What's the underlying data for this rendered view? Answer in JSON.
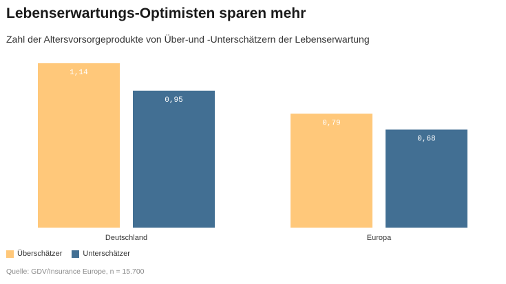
{
  "colors": {
    "ueberschaetzer": "#ffc87a",
    "unterschaetzer": "#426f93",
    "label_on_light": "#ffffff",
    "label_on_dark": "#ffffff"
  },
  "header": {
    "title": "Lebenserwartungs-Optimisten sparen mehr",
    "subtitle": "Zahl der Altersvorsorgeprodukte von Über-und -Unterschätzern der Lebenserwartung"
  },
  "legend": {
    "items": [
      {
        "label": "Überschätzer",
        "color": "#ffc87a"
      },
      {
        "label": "Unterschätzer",
        "color": "#426f93"
      }
    ]
  },
  "footer": {
    "source": "Quelle: GDV/Insurance Europe, n = 15.700"
  },
  "chart_data": {
    "type": "bar",
    "title": "Lebenserwartungs-Optimisten sparen mehr",
    "subtitle": "Zahl der Altersvorsorgeprodukte von Über-und -Unterschätzern der Lebenserwartung",
    "categories": [
      "Deutschland",
      "Europa"
    ],
    "series": [
      {
        "name": "Überschätzer",
        "values": [
          1.14,
          0.79
        ],
        "labels": [
          "1,14",
          "0,79"
        ],
        "color": "#ffc87a"
      },
      {
        "name": "Unterschätzer",
        "values": [
          0.95,
          0.68
        ],
        "labels": [
          "0,95",
          "0,68"
        ],
        "color": "#426f93"
      }
    ],
    "ylim": [
      0,
      1.14
    ],
    "grid": false,
    "legend_position": "bottom-left"
  }
}
